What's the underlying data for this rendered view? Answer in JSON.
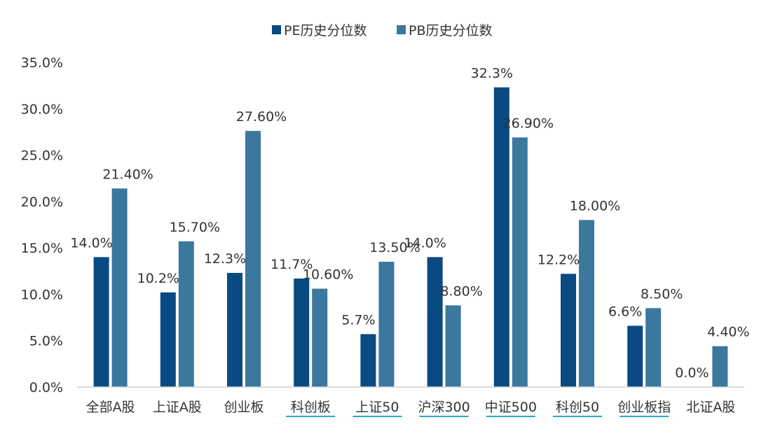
{
  "chart_data": {
    "type": "bar",
    "title": "",
    "xlabel": "",
    "ylabel": "",
    "ylim": [
      0,
      35
    ],
    "yticks": [
      "0.0%",
      "5.0%",
      "10.0%",
      "15.0%",
      "20.0%",
      "25.0%",
      "30.0%",
      "35.0%"
    ],
    "ytick_values": [
      0,
      5,
      10,
      15,
      20,
      25,
      30,
      35
    ],
    "legend_position": "top-center",
    "grid": false,
    "categories": [
      "全部A股",
      "上证A股",
      "创业板",
      "科创板",
      "上证50",
      "沪深300",
      "中证500",
      "科创50",
      "创业板指",
      "北证A股"
    ],
    "underlined_categories": [
      false,
      false,
      false,
      true,
      true,
      true,
      true,
      true,
      true,
      false
    ],
    "series": [
      {
        "name": "PE历史分位数",
        "color": "#0a4a82",
        "values": [
          14.0,
          10.2,
          12.3,
          11.7,
          5.7,
          14.0,
          32.3,
          12.2,
          6.6,
          0.0
        ],
        "labels": [
          "14.0%",
          "10.2%",
          "12.3%",
          "11.7%",
          "5.7%",
          "14.0%",
          "32.3%",
          "12.2%",
          "6.6%",
          "0.0%"
        ]
      },
      {
        "name": "PB历史分位数",
        "color": "#3a789e",
        "values": [
          21.4,
          15.7,
          27.6,
          10.6,
          13.5,
          8.8,
          26.9,
          18.0,
          8.5,
          4.4
        ],
        "labels": [
          "21.40%",
          "15.70%",
          "27.60%",
          "10.60%",
          "13.50%",
          "8.80%",
          "26.90%",
          "18.00%",
          "8.50%",
          "4.40%"
        ]
      }
    ]
  }
}
